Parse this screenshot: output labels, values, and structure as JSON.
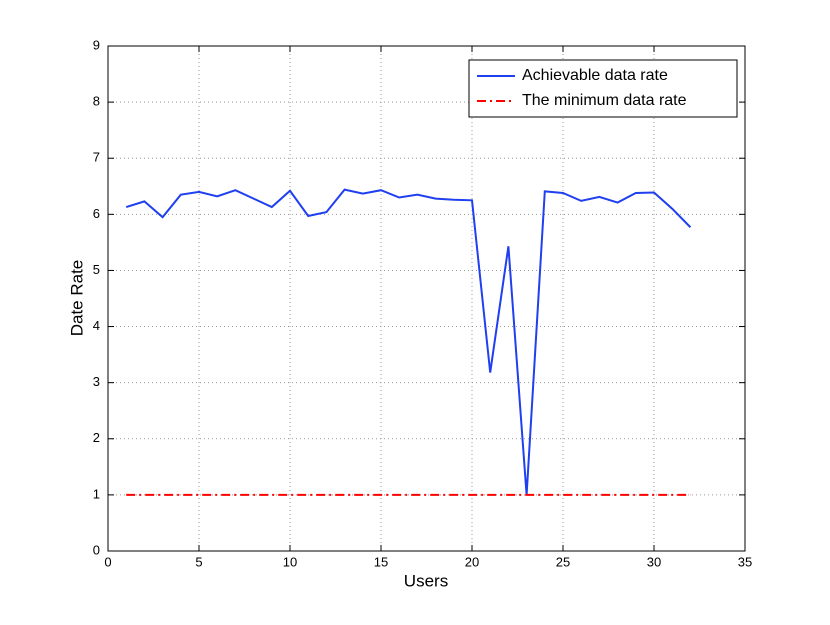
{
  "chart_data": {
    "type": "line",
    "x_label": "Users",
    "y_label": "Date Rate",
    "x": [
      1,
      2,
      3,
      4,
      5,
      6,
      7,
      8,
      9,
      10,
      11,
      12,
      13,
      14,
      15,
      16,
      17,
      18,
      19,
      20,
      21,
      22,
      23,
      24,
      25,
      26,
      27,
      28,
      29,
      30,
      31,
      32
    ],
    "series": [
      {
        "name": "Achievable data rate",
        "color": "#1f3ff0",
        "style": "solid",
        "values": [
          6.13,
          6.23,
          5.95,
          6.35,
          6.4,
          6.32,
          6.43,
          6.28,
          6.13,
          6.42,
          5.97,
          6.04,
          6.44,
          6.37,
          6.43,
          6.3,
          6.35,
          6.28,
          6.26,
          6.25,
          3.18,
          5.43,
          1.0,
          6.41,
          6.38,
          6.24,
          6.31,
          6.21,
          6.38,
          6.39,
          6.1,
          5.77
        ]
      },
      {
        "name": "The minimum data rate",
        "color": "#ff0000",
        "style": "dashdot",
        "values": [
          1,
          1,
          1,
          1,
          1,
          1,
          1,
          1,
          1,
          1,
          1,
          1,
          1,
          1,
          1,
          1,
          1,
          1,
          1,
          1,
          1,
          1,
          1,
          1,
          1,
          1,
          1,
          1,
          1,
          1,
          1,
          1
        ]
      }
    ],
    "xlim": [
      0,
      35
    ],
    "xticks": [
      0,
      5,
      10,
      15,
      20,
      25,
      30,
      35
    ],
    "ylim": [
      0,
      9
    ],
    "yticks": [
      0,
      1,
      2,
      3,
      4,
      5,
      6,
      7,
      8,
      9
    ],
    "grid": true,
    "legend": "northeast"
  }
}
